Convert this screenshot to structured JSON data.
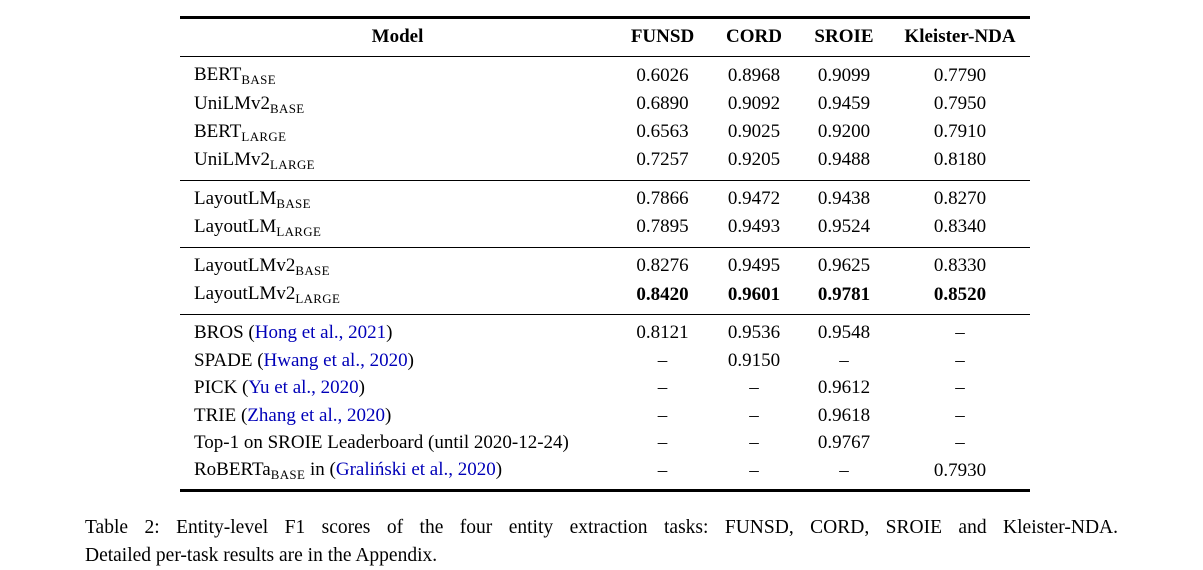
{
  "page": {
    "background": "#ffffff",
    "text_color": "#000000",
    "link_color": "#0000B8"
  },
  "table": {
    "header": [
      "Model",
      "FUNSD",
      "CORD",
      "SROIE",
      "Kleister-NDA"
    ],
    "groups": [
      {
        "rows": [
          {
            "name": [
              {
                "t": "BERT"
              },
              {
                "t": "BASE",
                "sub": true
              }
            ],
            "values": [
              "0.6026",
              "0.8968",
              "0.9099",
              "0.7790"
            ]
          },
          {
            "name": [
              {
                "t": "UniLMv2"
              },
              {
                "t": "BASE",
                "sub": true
              }
            ],
            "values": [
              "0.6890",
              "0.9092",
              "0.9459",
              "0.7950"
            ]
          },
          {
            "name": [
              {
                "t": "BERT"
              },
              {
                "t": "LARGE",
                "sub": true
              }
            ],
            "values": [
              "0.6563",
              "0.9025",
              "0.9200",
              "0.7910"
            ]
          },
          {
            "name": [
              {
                "t": "UniLMv2"
              },
              {
                "t": "LARGE",
                "sub": true
              }
            ],
            "values": [
              "0.7257",
              "0.9205",
              "0.9488",
              "0.8180"
            ]
          }
        ]
      },
      {
        "rows": [
          {
            "name": [
              {
                "t": "LayoutLM"
              },
              {
                "t": "BASE",
                "sub": true
              }
            ],
            "values": [
              "0.7866",
              "0.9472",
              "0.9438",
              "0.8270"
            ]
          },
          {
            "name": [
              {
                "t": "LayoutLM"
              },
              {
                "t": "LARGE",
                "sub": true
              }
            ],
            "values": [
              "0.7895",
              "0.9493",
              "0.9524",
              "0.8340"
            ]
          }
        ]
      },
      {
        "rows": [
          {
            "name": [
              {
                "t": "LayoutLMv2"
              },
              {
                "t": "BASE",
                "sub": true
              }
            ],
            "values": [
              "0.8276",
              "0.9495",
              "0.9625",
              "0.8330"
            ]
          },
          {
            "name": [
              {
                "t": "LayoutLMv2"
              },
              {
                "t": "LARGE",
                "sub": true
              }
            ],
            "values": [
              "0.8420",
              "0.9601",
              "0.9781",
              "0.8520"
            ],
            "bold_values": true
          }
        ]
      },
      {
        "rows": [
          {
            "name": [
              {
                "t": "BROS ("
              },
              {
                "t": "Hong et al., 2021",
                "link": true
              },
              {
                "t": ")"
              }
            ],
            "values": [
              "0.8121",
              "0.9536",
              "0.9548",
              "–"
            ]
          },
          {
            "name": [
              {
                "t": "SPADE ("
              },
              {
                "t": "Hwang et al., 2020",
                "link": true
              },
              {
                "t": ")"
              }
            ],
            "values": [
              "–",
              "0.9150",
              "–",
              "–"
            ]
          },
          {
            "name": [
              {
                "t": "PICK ("
              },
              {
                "t": "Yu et al., 2020",
                "link": true
              },
              {
                "t": ")"
              }
            ],
            "values": [
              "–",
              "–",
              "0.9612",
              "–"
            ]
          },
          {
            "name": [
              {
                "t": "TRIE ("
              },
              {
                "t": "Zhang et al., 2020",
                "link": true
              },
              {
                "t": ")"
              }
            ],
            "values": [
              "–",
              "–",
              "0.9618",
              "–"
            ]
          },
          {
            "name": [
              {
                "t": "Top-1 on SROIE Leaderboard (until 2020-12-24)"
              }
            ],
            "values": [
              "–",
              "–",
              "0.9767",
              "–"
            ]
          },
          {
            "name": [
              {
                "t": "RoBERTa"
              },
              {
                "t": "BASE",
                "sub": true
              },
              {
                "t": " in ("
              },
              {
                "t": "Graliński et al., 2020",
                "link": true
              },
              {
                "t": ")"
              }
            ],
            "values": [
              "–",
              "–",
              "–",
              "0.7930"
            ]
          }
        ]
      }
    ]
  },
  "caption": {
    "line1": "Table 2: Entity-level F1 scores of the four entity extraction tasks: FUNSD, CORD, SROIE and Kleister-NDA.",
    "line2": "Detailed per-task results are in the Appendix."
  }
}
